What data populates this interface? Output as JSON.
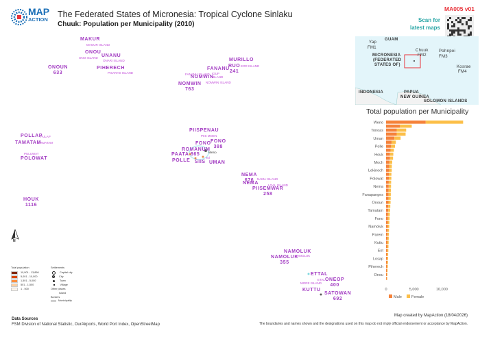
{
  "header": {
    "title": "The Federated States of Micronesia: Tropical Cyclone Sinlaku",
    "subtitle": "Chuuk: Population per Municipality (2010)",
    "map_id": "MA005 v01",
    "scan_text_1": "Scan for",
    "scan_text_2": "latest maps",
    "logo_line1": "MAP",
    "logo_line2": "ACTION"
  },
  "colors": {
    "label_purple": "#a23bc2",
    "male": "#f5823a",
    "female": "#fcbf49",
    "map_id_red": "#e8333a",
    "scan_teal": "#2aa6a6"
  },
  "inset_map": {
    "labels": {
      "guam": "GUAM",
      "yap": "Yap",
      "fm1": "FM1",
      "micronesia": "MICRONESIA",
      "fsm": "(FEDERATED",
      "states": "STATES OF)",
      "chuuk": "Chuuk",
      "fm2": "FM2",
      "pohnpei": "Pohnpei",
      "fm3": "FM3",
      "kosrae": "Kosrae",
      "fm4": "FM4",
      "indonesia": "INDONESIA",
      "papua": "PAPUA",
      "new_guinea": "NEW GUINEA",
      "solomon": "SOLOMON ISLANDS"
    }
  },
  "map_labels": {
    "municipalities": [
      {
        "name": "MAKUR",
        "value": ""
      },
      {
        "name": "ONOU",
        "value": ""
      },
      {
        "name": "UNANU",
        "value": ""
      },
      {
        "name": "ONOUN",
        "value": "633"
      },
      {
        "name": "PIHERECH",
        "value": ""
      },
      {
        "name": "MURILLO",
        "value": ""
      },
      {
        "name": "RUO",
        "value": "241"
      },
      {
        "name": "FANANU",
        "value": ""
      },
      {
        "name": "NOMWIN",
        "value": ""
      },
      {
        "name": "NOMWIN",
        "value": "763"
      },
      {
        "name": "PIISPENAU",
        "value": ""
      },
      {
        "name": "FONO",
        "value": ""
      },
      {
        "name": "FONO",
        "value": "388"
      },
      {
        "name": "ROMANUM",
        "value": ""
      },
      {
        "name": "PAATA",
        "value": "865"
      },
      {
        "name": "POLLE",
        "value": ""
      },
      {
        "name": "SIIS",
        "value": ""
      },
      {
        "name": "UMAN",
        "value": ""
      },
      {
        "name": "POLLAP",
        "value": ""
      },
      {
        "name": "TAMATAM",
        "value": ""
      },
      {
        "name": "POLOWAT",
        "value": ""
      },
      {
        "name": "HOUK",
        "value": "1116"
      },
      {
        "name": "NEMA",
        "value": "676"
      },
      {
        "name": "NEMA",
        "value": ""
      },
      {
        "name": "PIISEMWAR",
        "value": "258"
      },
      {
        "name": "NAMOLUK",
        "value": ""
      },
      {
        "name": "NAMOLUK",
        "value": "355"
      },
      {
        "name": "ETTAL",
        "value": ""
      },
      {
        "name": "ONEOP",
        "value": "400"
      },
      {
        "name": "KUTTU",
        "value": ""
      },
      {
        "name": "SATOWAN",
        "value": "692"
      }
    ],
    "islands": {
      "magur": "MAGUR ISLAND",
      "ono": "ONO ISLAND",
      "onari": "ONARI ISLAND",
      "pisaras": "PISARAS ISLAND",
      "eor": "EOR ISLAND",
      "fananu": "FANANU ISLAND",
      "igup": "IGUP",
      "island": "ISLAND",
      "nomwin": "NOMWIN ISLAND",
      "piis_moen": "PIIS MOEN",
      "weno": "Weno",
      "tol": "Tol",
      "pulap": "PULAP",
      "tamatam": "TAMATAM",
      "puluwat": "PULUWAT",
      "nama": "NAMA ISLAND",
      "loal": "LOAL ISLAND",
      "namoluk": "NAMOLUK",
      "etal": "ETAL",
      "more": "MORE ISLAND"
    },
    "north": "N"
  },
  "legend": {
    "population_title": "Total population",
    "classes": [
      {
        "label": "10,001 - 13,856",
        "color": "#7f2704"
      },
      {
        "label": "5,001 - 10,000",
        "color": "#d94801"
      },
      {
        "label": "1,501 - 5,000",
        "color": "#fd8d3c"
      },
      {
        "label": "501 - 1,500",
        "color": "#fdd0a2"
      },
      {
        "label": "1 - 500",
        "color": "#fff5eb"
      }
    ],
    "settlements_title": "Settlements",
    "settlements": [
      "Capital city",
      "City",
      "Town",
      "Village"
    ],
    "other_title": "Other places",
    "island": "Island",
    "borders_title": "Borders",
    "municipality": "Municipality"
  },
  "chart_data": {
    "type": "bar",
    "orientation": "horizontal",
    "stacked": true,
    "title": "Total population per Municipality",
    "xlabel": "",
    "ylabel": "",
    "xlim": [
      0,
      14000
    ],
    "x_ticks": [
      "0",
      "5,000",
      "10,000"
    ],
    "x_tick_values": [
      0,
      5000,
      10000
    ],
    "legend_position": "bottom",
    "categories": [
      "Weno",
      "",
      "Tonoas",
      "",
      "Uman",
      "",
      "Polle",
      "",
      "Houk",
      "",
      "Moch",
      "",
      "Lekinoch",
      "",
      "Polowat",
      "",
      "Nema",
      "",
      "Fanapanges",
      "",
      "Onoun",
      "",
      "Tamatam",
      "",
      "Fono",
      "",
      "Namoluk",
      "",
      "Parem",
      "",
      "Kuttu",
      "",
      "Eot",
      "",
      "Losap",
      "",
      "Piherech",
      "",
      "Onou",
      ""
    ],
    "series": [
      {
        "name": "Male",
        "values": [
          7100,
          2500,
          1900,
          1900,
          1500,
          1000,
          900,
          800,
          700,
          700,
          600,
          550,
          550,
          500,
          500,
          480,
          470,
          460,
          450,
          440,
          430,
          400,
          380,
          350,
          330,
          310,
          300,
          280,
          270,
          250,
          240,
          230,
          220,
          200,
          190,
          180,
          170,
          150,
          130,
          110
        ]
      },
      {
        "name": "Female",
        "values": [
          6700,
          2100,
          1700,
          1600,
          1100,
          750,
          700,
          600,
          600,
          550,
          500,
          480,
          470,
          460,
          450,
          430,
          420,
          410,
          400,
          390,
          380,
          360,
          340,
          320,
          300,
          280,
          270,
          250,
          240,
          230,
          220,
          200,
          190,
          180,
          170,
          160,
          150,
          130,
          120,
          100
        ]
      }
    ]
  },
  "footer": {
    "data_sources_title": "Data Sources",
    "data_sources": "FSM Division of National Statistic, OurAirports, World Port Index, OpenStreetMap",
    "credit": "Map created by MapAction (18/04/2026)",
    "disclaimer": "The boundaries and names shown and the designations used on this map do not imply official endorsement or acceptance by MapAction."
  }
}
